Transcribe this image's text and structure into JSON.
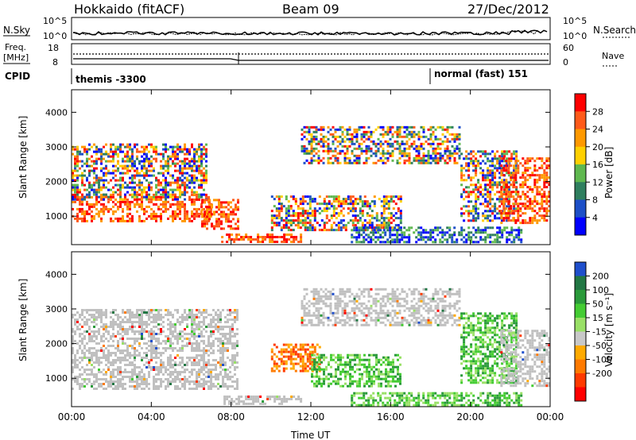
{
  "header": {
    "radar": "Hokkaido (fitACF)",
    "beam": "Beam 09",
    "date": "27/Dec/2012"
  },
  "status_panels": {
    "nsky_label": "N.Sky",
    "nsearch_label": "N.Search",
    "nsky_ticks": [
      "10^5",
      "10^0"
    ],
    "nsearch_ticks": [
      "10^5",
      "10^0"
    ],
    "freq_label_line1": "Freq.",
    "freq_label_line2": "[MHz]",
    "freq_ticks": [
      "18",
      "8"
    ],
    "nave_label": "Nave",
    "nave_ticks": [
      "60",
      "0"
    ],
    "cpid_label": "CPID",
    "cpid_programs": [
      {
        "name": "themis -3300",
        "start_hour": 0
      },
      {
        "name": "normal (fast) 151",
        "start_hour": 18.1
      }
    ]
  },
  "colors": {
    "power_scale": [
      "#0000ff",
      "#1d4fc7",
      "#2f7f5f",
      "#5fb84f",
      "#ffd000",
      "#ff9900",
      "#ff5a1a",
      "#ff0000"
    ],
    "velocity_scale": [
      "#ff0000",
      "#ff3a00",
      "#ff7a00",
      "#ffaa00",
      "#c8c8c8",
      "#99e066",
      "#44cc33",
      "#2a9a3a",
      "#227744",
      "#1f4fcc"
    ],
    "ground_scatter": "#c0c0c0"
  },
  "chart_data": [
    {
      "type": "heatmap",
      "panel": "power",
      "ylabel": "Slant Range [km]",
      "xlabel": "Time UT",
      "xlim": [
        0,
        24
      ],
      "ylim": [
        180,
        4650
      ],
      "x_ticks": [
        "00:00",
        "04:00",
        "08:00",
        "12:00",
        "16:00",
        "20:00",
        "00:00"
      ],
      "y_ticks": [
        1000,
        2000,
        3000,
        4000
      ],
      "colorbar": {
        "label": "Power [dB]",
        "ticks": [
          4,
          8,
          12,
          16,
          20,
          24,
          28
        ],
        "range": [
          0,
          32
        ]
      },
      "echo_regions": [
        {
          "t0": 0,
          "t1": 7.0,
          "r0": 850,
          "r1": 1650,
          "level": "high"
        },
        {
          "t0": 0,
          "t1": 6.7,
          "r0": 1500,
          "r1": 3100,
          "level": "mixed"
        },
        {
          "t0": 6.5,
          "t1": 8.3,
          "r0": 650,
          "r1": 1500,
          "level": "high"
        },
        {
          "t0": 7.5,
          "t1": 11.5,
          "r0": 250,
          "r1": 500,
          "level": "high"
        },
        {
          "t0": 10.0,
          "t1": 16.5,
          "r0": 600,
          "r1": 1600,
          "level": "mixed"
        },
        {
          "t0": 11.5,
          "t1": 19.5,
          "r0": 2500,
          "r1": 3600,
          "level": "mixed"
        },
        {
          "t0": 14.0,
          "t1": 22.5,
          "r0": 250,
          "r1": 700,
          "level": "low"
        },
        {
          "t0": 19.5,
          "t1": 22.3,
          "r0": 900,
          "r1": 2900,
          "level": "mixed"
        },
        {
          "t0": 21.5,
          "t1": 24.0,
          "r0": 800,
          "r1": 2700,
          "level": "high"
        }
      ]
    },
    {
      "type": "heatmap",
      "panel": "velocity",
      "ylabel": "Slant Range [km]",
      "xlabel": "Time UT",
      "xlim": [
        0,
        24
      ],
      "ylim": [
        180,
        4650
      ],
      "x_ticks": [
        "00:00",
        "04:00",
        "08:00",
        "12:00",
        "16:00",
        "20:00",
        "00:00"
      ],
      "y_ticks": [
        1000,
        2000,
        3000,
        4000
      ],
      "colorbar": {
        "label": "Velocity [m s⁻¹]",
        "ticks": [
          200,
          100,
          50,
          15,
          -15,
          -50,
          -100,
          -200
        ],
        "range": [
          -250,
          250
        ]
      },
      "echo_regions": [
        {
          "t0": 0,
          "t1": 8.3,
          "r0": 700,
          "r1": 3000,
          "level": "ground"
        },
        {
          "t0": 7.5,
          "t1": 11.5,
          "r0": 250,
          "r1": 500,
          "level": "ground"
        },
        {
          "t0": 10.0,
          "t1": 12.5,
          "r0": 1200,
          "r1": 2000,
          "level": "negative"
        },
        {
          "t0": 12.0,
          "t1": 16.5,
          "r0": 800,
          "r1": 1700,
          "level": "positive"
        },
        {
          "t0": 11.5,
          "t1": 19.5,
          "r0": 2500,
          "r1": 3600,
          "level": "ground"
        },
        {
          "t0": 14.0,
          "t1": 22.5,
          "r0": 250,
          "r1": 600,
          "level": "positive"
        },
        {
          "t0": 19.5,
          "t1": 22.3,
          "r0": 900,
          "r1": 2900,
          "level": "positive"
        },
        {
          "t0": 21.5,
          "t1": 24.0,
          "r0": 800,
          "r1": 2400,
          "level": "ground"
        }
      ]
    }
  ]
}
